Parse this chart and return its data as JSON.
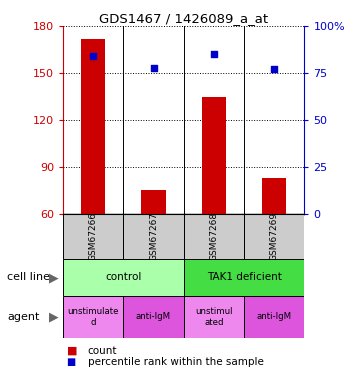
{
  "title": "GDS1467 / 1426089_a_at",
  "samples": [
    "GSM67266",
    "GSM67267",
    "GSM67268",
    "GSM67269"
  ],
  "counts": [
    172,
    75,
    135,
    83
  ],
  "percentiles": [
    84,
    78,
    85,
    77
  ],
  "ylim_left": [
    60,
    180
  ],
  "ylim_right": [
    0,
    100
  ],
  "yticks_left": [
    60,
    90,
    120,
    150,
    180
  ],
  "yticks_right": [
    0,
    25,
    50,
    75,
    100
  ],
  "ytick_labels_right": [
    "0",
    "25",
    "50",
    "75",
    "100%"
  ],
  "bar_color": "#cc0000",
  "scatter_color": "#0000cc",
  "cell_line_info": [
    {
      "label": "control",
      "start": 0,
      "end": 2,
      "color": "#aaffaa"
    },
    {
      "label": "TAK1 deficient",
      "start": 2,
      "end": 4,
      "color": "#44dd44"
    }
  ],
  "agent_info": [
    {
      "label": "unstimulate\nd",
      "start": 0,
      "end": 1,
      "color": "#ee88ee"
    },
    {
      "label": "anti-IgM",
      "start": 1,
      "end": 2,
      "color": "#dd55dd"
    },
    {
      "label": "unstimul\nated",
      "start": 2,
      "end": 3,
      "color": "#ee88ee"
    },
    {
      "label": "anti-IgM",
      "start": 3,
      "end": 4,
      "color": "#dd55dd"
    }
  ],
  "left_axis_color": "#cc0000",
  "right_axis_color": "#0000cc",
  "sample_box_color": "#cccccc"
}
